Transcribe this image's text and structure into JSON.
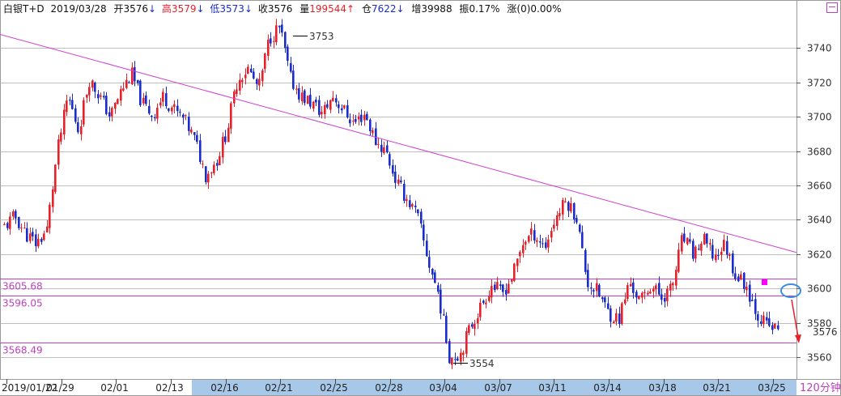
{
  "header": {
    "instrument": "白银T+D",
    "date": "2019/03/28",
    "open_label": "开",
    "open_value": "3576",
    "open_arrow": "↓",
    "high_label": "高",
    "high_value": "3579",
    "high_arrow": "↓",
    "low_label": "低",
    "low_value": "3573",
    "low_arrow": "↓",
    "close_label": "收",
    "close_value": "3576",
    "volume_label": "量",
    "volume_value": "199544",
    "volume_arrow": "↑",
    "oi_label": "仓",
    "oi_value": "7622",
    "oi_arrow": "↓",
    "inc_label": "增",
    "inc_value": "39988",
    "amp_label": "振",
    "amp_value": "0.17%",
    "chg_label": "涨(0)",
    "chg_value": "0.00%"
  },
  "period_label": "120分钟",
  "colors": {
    "up": "#e8202a",
    "down": "#1a2ccc",
    "trendline": "#d040d0",
    "level": "#c040c0",
    "grid": "#a9a9a9",
    "date_bar": "#a8c8ea",
    "ellipse": "#3a8ee0",
    "marker": "#ff00ff"
  },
  "chart_data": {
    "type": "candlestick",
    "title": "",
    "xlabel": "",
    "ylabel": "",
    "ylim": [
      3552,
      3760
    ],
    "y_ticks": [
      3560,
      3580,
      3600,
      3620,
      3640,
      3660,
      3680,
      3700,
      3720,
      3740
    ],
    "x_ticks": [
      "2019/01/22",
      "01/29",
      "02/01",
      "02/13",
      "02/16",
      "02/21",
      "02/25",
      "02/28",
      "03/04",
      "03/07",
      "03/11",
      "03/14",
      "03/18",
      "03/21",
      "03/25"
    ],
    "grid": true,
    "last_price": 3576,
    "horizontal_levels": [
      {
        "label": "3605.68",
        "value": 3605.68
      },
      {
        "label": "3596.05",
        "value": 3596.05
      },
      {
        "label": "3568.49",
        "value": 3568.49
      }
    ],
    "annotations": [
      {
        "label": "3753",
        "value": 3753
      },
      {
        "label": "3554",
        "value": 3554
      }
    ],
    "trendline": {
      "start_value": 3748,
      "end_value": 3621
    },
    "price_path": [
      3636,
      3642,
      3632,
      3626,
      3634,
      3680,
      3712,
      3692,
      3722,
      3712,
      3700,
      3715,
      3725,
      3708,
      3701,
      3712,
      3704,
      3698,
      3686,
      3666,
      3674,
      3692,
      3722,
      3728,
      3716,
      3746,
      3752,
      3722,
      3712,
      3708,
      3702,
      3712,
      3704,
      3696,
      3702,
      3686,
      3680,
      3662,
      3652,
      3642,
      3616,
      3596,
      3560,
      3562,
      3578,
      3590,
      3602,
      3597,
      3608,
      3628,
      3632,
      3624,
      3641,
      3651,
      3642,
      3604,
      3598,
      3586,
      3582,
      3604,
      3592,
      3602,
      3595,
      3600,
      3630,
      3620,
      3628,
      3618,
      3626,
      3608,
      3602,
      3586,
      3578,
      3576
    ]
  }
}
